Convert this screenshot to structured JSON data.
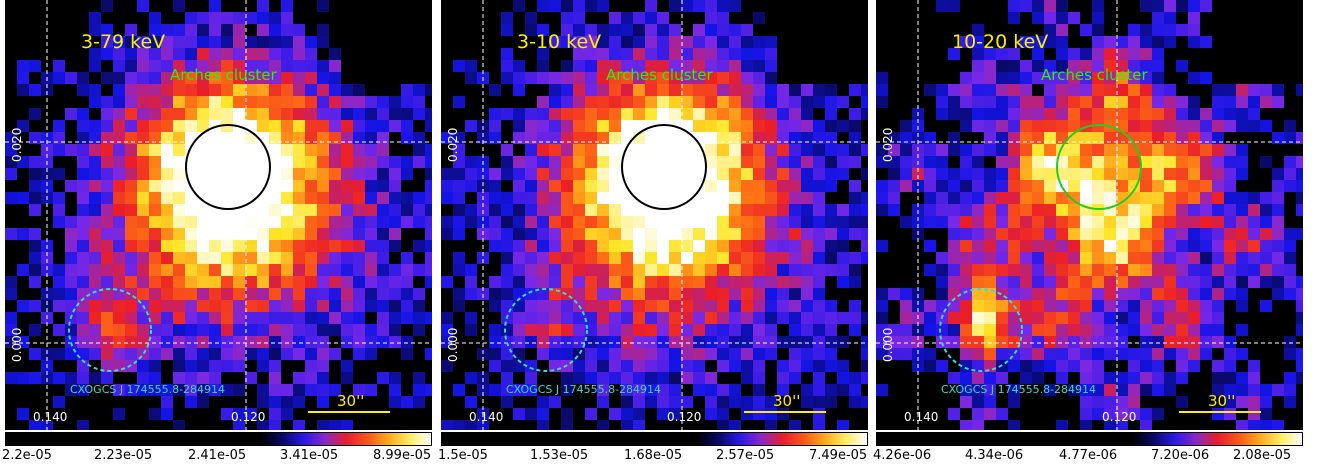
{
  "panels": [
    {
      "energy_label": "3-79 keV",
      "source_label": "Arches cluster",
      "source_circle_color": "#000000",
      "point_source_label": "CXOGCS J 174555.8-284914",
      "point_source_brightness": 0.45,
      "arches_brightness": 1.0,
      "scale_label": "30''",
      "y_tick_top": "0.020",
      "y_tick_bottom": "0.000",
      "x_tick_left": "0.140",
      "x_tick_right": "0.120",
      "colorbar_ticks": [
        "2.2e-05",
        "2.23e-05",
        "2.41e-05",
        "3.41e-05",
        "8.99e-05"
      ]
    },
    {
      "energy_label": "3-10 keV",
      "source_label": "Arches cluster",
      "source_circle_color": "#000000",
      "point_source_label": "CXOGCS J 174555.8-284914",
      "point_source_brightness": 0.25,
      "arches_brightness": 1.0,
      "scale_label": "30''",
      "y_tick_top": "0.020",
      "y_tick_bottom": "0.000",
      "x_tick_left": "0.140",
      "x_tick_right": "0.120",
      "colorbar_ticks": [
        "1.5e-05",
        "1.53e-05",
        "1.68e-05",
        "2.57e-05",
        "7.49e-05"
      ]
    },
    {
      "energy_label": "10-20 keV",
      "source_label": "Arches cluster",
      "source_circle_color": "#22cc22",
      "point_source_label": "CXOGCS J 174555.8-284914",
      "point_source_brightness": 0.95,
      "arches_brightness": 0.55,
      "scale_label": "30''",
      "y_tick_top": "0.020",
      "y_tick_bottom": "0.000",
      "x_tick_left": "0.140",
      "x_tick_right": "0.120",
      "colorbar_ticks": [
        "4.26e-06",
        "4.34e-06",
        "4.77e-06",
        "7.20e-06",
        "2.08e-05"
      ]
    }
  ],
  "colors": {
    "energy_label": "#ffee00",
    "source_label": "#22ee22",
    "point_source": "#33dddd",
    "scale_bar": "#ffee00",
    "grid": "#ffffff"
  }
}
